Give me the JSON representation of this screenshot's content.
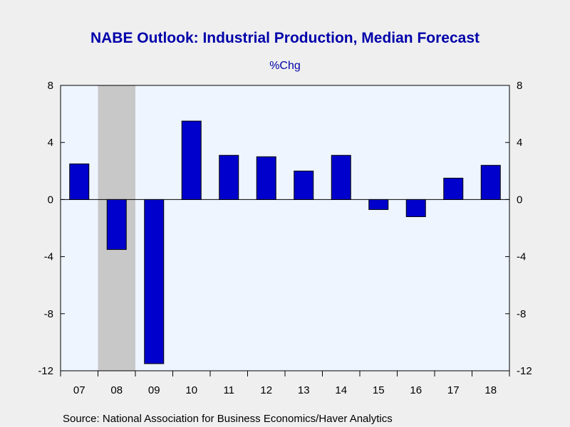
{
  "chart_data": {
    "type": "bar",
    "title": "NABE Outlook: Industrial Production, Median Forecast",
    "subtitle": "%Chg",
    "categories": [
      "07",
      "08",
      "09",
      "10",
      "11",
      "12",
      "13",
      "14",
      "15",
      "16",
      "17",
      "18"
    ],
    "values": [
      2.5,
      -3.5,
      -11.5,
      5.5,
      3.1,
      3.0,
      2.0,
      3.1,
      -0.7,
      -1.2,
      1.5,
      2.4
    ],
    "ylim": [
      -12,
      8
    ],
    "yticks": [
      "8",
      "4",
      "0",
      "-4",
      "-8",
      "-12"
    ],
    "recession_shading": [
      "08"
    ],
    "grid": false,
    "xlabel": "",
    "ylabel": "",
    "colors": {
      "bar": "#0000cc",
      "title": "#0000aa",
      "plot_background": "#eef5ff",
      "recession": "#c8c8c8",
      "page_background": "#efefef"
    },
    "source": "Source:  National Association for Business Economics/Haver Analytics"
  }
}
